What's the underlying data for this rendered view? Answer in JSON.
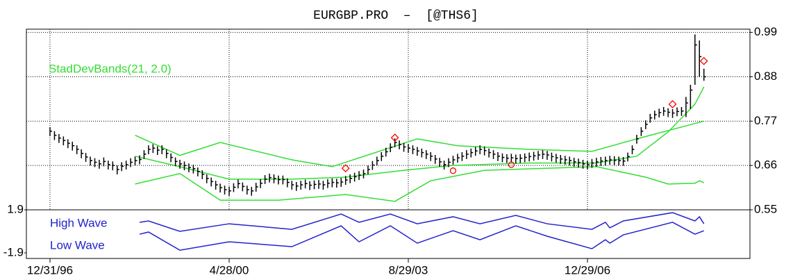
{
  "chart_data": [
    {
      "type": "ohlc",
      "title": "EURGBP.PRO  –  [@THS6]",
      "annotation": "StadDevBands(21, 2.0)",
      "annotation_color": "#33dd33",
      "color": "#000000",
      "ylim": [
        0.55,
        0.998
      ],
      "yticks": [
        0.99,
        0.88,
        0.77,
        0.66,
        0.55
      ],
      "grid": true,
      "categories": [
        "12/31/96",
        null,
        null,
        null,
        null,
        null,
        null,
        null,
        null,
        null,
        null,
        null,
        null,
        null,
        null,
        null,
        null,
        null,
        null,
        null,
        null,
        null,
        null,
        null,
        null,
        null,
        null,
        null,
        null,
        null,
        null,
        null,
        null,
        null,
        null,
        null,
        null,
        null,
        null,
        null,
        "4/28/00",
        null,
        null,
        null,
        null,
        null,
        null,
        null,
        null,
        null,
        null,
        null,
        null,
        null,
        null,
        null,
        null,
        null,
        null,
        null,
        null,
        null,
        null,
        null,
        null,
        null,
        null,
        null,
        null,
        null,
        null,
        null,
        null,
        null,
        null,
        null,
        null,
        null,
        null,
        null,
        "8/29/03",
        null,
        null,
        null,
        null,
        null,
        null,
        null,
        null,
        null,
        null,
        null,
        null,
        null,
        null,
        null,
        null,
        null,
        null,
        null,
        null,
        null,
        null,
        null,
        null,
        null,
        null,
        null,
        null,
        null,
        null,
        null,
        null,
        null,
        null,
        null,
        null,
        null,
        null,
        null,
        "12/29/06",
        null,
        null,
        null,
        null,
        null,
        null,
        null,
        null,
        null,
        null,
        null,
        null,
        null,
        null,
        null,
        null,
        null,
        null,
        null,
        null,
        null,
        null,
        null,
        null,
        null,
        null
      ],
      "close": [
        0.745,
        0.735,
        0.728,
        0.722,
        0.715,
        0.709,
        0.7,
        0.69,
        0.681,
        0.672,
        0.668,
        0.664,
        0.67,
        0.662,
        0.66,
        0.65,
        0.658,
        0.662,
        0.668,
        0.672,
        0.675,
        0.688,
        0.7,
        0.703,
        0.698,
        0.7,
        0.69,
        0.68,
        0.67,
        0.664,
        0.66,
        0.655,
        0.652,
        0.645,
        0.638,
        0.628,
        0.62,
        0.612,
        0.605,
        0.6,
        0.597,
        0.606,
        0.615,
        0.608,
        0.6,
        0.597,
        0.607,
        0.616,
        0.626,
        0.63,
        0.628,
        0.625,
        0.625,
        0.618,
        0.612,
        0.609,
        0.612,
        0.615,
        0.611,
        0.613,
        0.614,
        0.612,
        0.616,
        0.618,
        0.617,
        0.619,
        0.624,
        0.628,
        0.632,
        0.636,
        0.64,
        0.65,
        0.661,
        0.672,
        0.683,
        0.694,
        0.705,
        0.717,
        0.712,
        0.706,
        0.703,
        0.7,
        0.696,
        0.692,
        0.688,
        0.683,
        0.676,
        0.669,
        0.662,
        0.668,
        0.674,
        0.679,
        0.683,
        0.688,
        0.692,
        0.696,
        0.7,
        0.697,
        0.692,
        0.688,
        0.683,
        0.68,
        0.678,
        0.679,
        0.677,
        0.678,
        0.68,
        0.682,
        0.684,
        0.686,
        0.688,
        0.686,
        0.682,
        0.679,
        0.676,
        0.674,
        0.672,
        0.669,
        0.667,
        0.664,
        0.662,
        0.666,
        0.669,
        0.671,
        0.672,
        0.674,
        0.673,
        0.672,
        0.671,
        0.682,
        0.7,
        0.726,
        0.745,
        0.762,
        0.778,
        0.786,
        0.791,
        0.795,
        0.792,
        0.79,
        0.794,
        0.795,
        0.815,
        0.847,
        0.959,
        0.93,
        0.88
      ],
      "high": [
        0.755,
        0.745,
        0.738,
        0.732,
        0.725,
        0.719,
        0.71,
        0.7,
        0.691,
        0.682,
        0.678,
        0.674,
        0.68,
        0.672,
        0.67,
        0.66,
        0.668,
        0.672,
        0.678,
        0.682,
        0.685,
        0.698,
        0.71,
        0.713,
        0.708,
        0.71,
        0.7,
        0.69,
        0.68,
        0.674,
        0.67,
        0.665,
        0.662,
        0.655,
        0.648,
        0.638,
        0.63,
        0.622,
        0.615,
        0.61,
        0.607,
        0.616,
        0.625,
        0.618,
        0.61,
        0.607,
        0.617,
        0.626,
        0.636,
        0.64,
        0.638,
        0.635,
        0.635,
        0.628,
        0.622,
        0.619,
        0.622,
        0.625,
        0.621,
        0.623,
        0.624,
        0.622,
        0.626,
        0.628,
        0.627,
        0.629,
        0.634,
        0.638,
        0.642,
        0.646,
        0.65,
        0.66,
        0.671,
        0.682,
        0.693,
        0.704,
        0.715,
        0.727,
        0.722,
        0.716,
        0.713,
        0.71,
        0.706,
        0.702,
        0.698,
        0.693,
        0.686,
        0.679,
        0.672,
        0.678,
        0.684,
        0.689,
        0.693,
        0.698,
        0.702,
        0.706,
        0.71,
        0.707,
        0.702,
        0.698,
        0.693,
        0.69,
        0.688,
        0.689,
        0.687,
        0.688,
        0.69,
        0.692,
        0.694,
        0.696,
        0.698,
        0.696,
        0.692,
        0.689,
        0.686,
        0.684,
        0.682,
        0.679,
        0.677,
        0.674,
        0.672,
        0.676,
        0.679,
        0.681,
        0.682,
        0.684,
        0.683,
        0.682,
        0.681,
        0.692,
        0.71,
        0.736,
        0.755,
        0.772,
        0.788,
        0.796,
        0.801,
        0.805,
        0.802,
        0.8,
        0.804,
        0.805,
        0.83,
        0.86,
        0.985,
        0.97,
        0.9
      ],
      "low": [
        0.733,
        0.723,
        0.716,
        0.71,
        0.703,
        0.697,
        0.688,
        0.678,
        0.669,
        0.66,
        0.656,
        0.652,
        0.658,
        0.65,
        0.648,
        0.638,
        0.646,
        0.65,
        0.656,
        0.66,
        0.663,
        0.676,
        0.688,
        0.691,
        0.686,
        0.688,
        0.678,
        0.668,
        0.658,
        0.652,
        0.648,
        0.643,
        0.64,
        0.633,
        0.626,
        0.616,
        0.608,
        0.6,
        0.593,
        0.588,
        0.585,
        0.594,
        0.603,
        0.596,
        0.588,
        0.585,
        0.595,
        0.604,
        0.614,
        0.618,
        0.616,
        0.613,
        0.613,
        0.606,
        0.6,
        0.597,
        0.6,
        0.603,
        0.599,
        0.601,
        0.602,
        0.6,
        0.604,
        0.606,
        0.605,
        0.607,
        0.612,
        0.616,
        0.62,
        0.624,
        0.628,
        0.638,
        0.649,
        0.66,
        0.671,
        0.682,
        0.693,
        0.705,
        0.7,
        0.694,
        0.691,
        0.688,
        0.684,
        0.68,
        0.676,
        0.671,
        0.664,
        0.657,
        0.65,
        0.656,
        0.662,
        0.667,
        0.671,
        0.676,
        0.68,
        0.684,
        0.688,
        0.685,
        0.68,
        0.676,
        0.671,
        0.668,
        0.666,
        0.667,
        0.665,
        0.666,
        0.668,
        0.67,
        0.672,
        0.674,
        0.676,
        0.674,
        0.67,
        0.667,
        0.664,
        0.662,
        0.66,
        0.657,
        0.655,
        0.652,
        0.65,
        0.654,
        0.657,
        0.659,
        0.66,
        0.662,
        0.661,
        0.66,
        0.659,
        0.67,
        0.688,
        0.714,
        0.733,
        0.75,
        0.766,
        0.774,
        0.779,
        0.783,
        0.78,
        0.778,
        0.782,
        0.783,
        0.78,
        0.8,
        0.86,
        0.88,
        0.87
      ],
      "bands": [
        {
          "color": "#33dd33",
          "x": [
            19,
            29,
            38,
            54,
            63,
            82,
            91,
            107,
            121,
            131,
            146
          ],
          "values": [
            0.735,
            0.685,
            0.717,
            0.674,
            0.657,
            0.726,
            0.709,
            0.7,
            0.695,
            0.726,
            0.77
          ]
        },
        {
          "color": "#33dd33",
          "x": [
            19,
            29,
            40,
            54,
            66,
            79,
            90,
            107,
            122,
            131,
            138,
            144,
            146
          ],
          "values": [
            0.683,
            0.657,
            0.626,
            0.626,
            0.631,
            0.648,
            0.66,
            0.666,
            0.666,
            0.683,
            0.743,
            0.812,
            0.855
          ]
        },
        {
          "color": "#33dd33",
          "x": [
            19,
            29,
            38,
            51,
            66,
            77,
            85,
            97,
            122,
            133,
            138,
            144,
            145,
            146
          ],
          "values": [
            0.614,
            0.64,
            0.574,
            0.574,
            0.588,
            0.571,
            0.622,
            0.648,
            0.657,
            0.631,
            0.614,
            0.616,
            0.622,
            0.617
          ]
        }
      ],
      "diamonds": {
        "color": "#ff0000",
        "x": [
          66,
          77,
          139,
          146
        ],
        "values": [
          0.653,
          0.729,
          0.812,
          0.919
        ]
      },
      "circles": {
        "color": "#ff0000",
        "x": [
          90,
          103
        ],
        "values": [
          0.647,
          0.662
        ]
      }
    },
    {
      "type": "line",
      "ylim": [
        -2.39,
        1.9
      ],
      "yticks": [
        1.9,
        -1.9
      ],
      "series": [
        {
          "name": "High Wave",
          "color": "#2222cc",
          "x": [
            20,
            22,
            29,
            40,
            54,
            65,
            69,
            76,
            82,
            90,
            96,
            104,
            111,
            121,
            124,
            125,
            128,
            139,
            144,
            145,
            146
          ],
          "values": [
            0.8,
            0.92,
            0.0,
            0.67,
            0.18,
            1.53,
            0.8,
            1.53,
            0.67,
            1.29,
            0.67,
            1.41,
            0.67,
            0.18,
            0.8,
            0.31,
            0.92,
            1.65,
            0.92,
            1.29,
            0.67
          ]
        },
        {
          "name": "Low Wave",
          "color": "#2222cc",
          "x": [
            20,
            22,
            29,
            40,
            54,
            65,
            69,
            76,
            82,
            90,
            96,
            104,
            111,
            121,
            124,
            125,
            128,
            139,
            144,
            146
          ],
          "values": [
            -0.25,
            -0.06,
            -1.66,
            -0.92,
            -1.35,
            0.49,
            -0.92,
            0.49,
            -1.04,
            0.06,
            -0.74,
            0.49,
            -0.43,
            -1.53,
            -0.74,
            -1.04,
            -0.31,
            0.8,
            -0.25,
            0.06
          ]
        }
      ]
    }
  ]
}
